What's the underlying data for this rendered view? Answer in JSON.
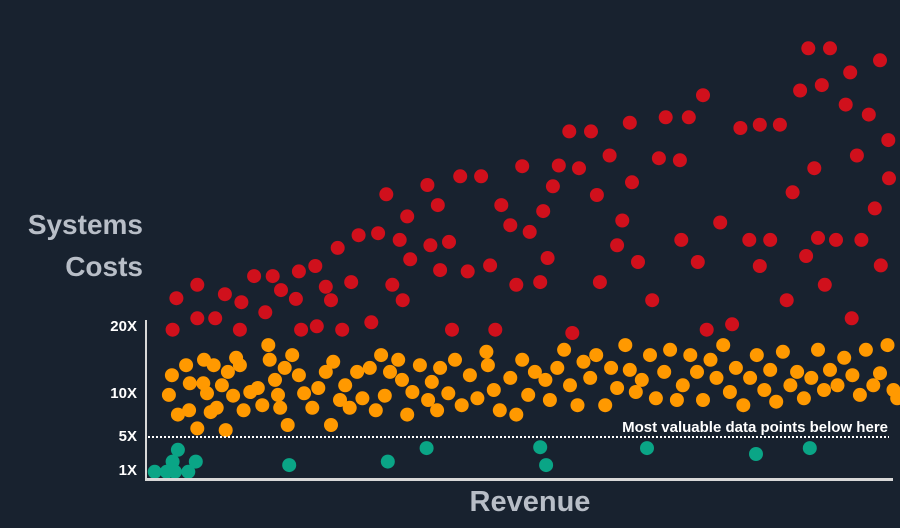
{
  "chart_data": {
    "type": "scatter",
    "title": "",
    "ylabel_lines": [
      "Systems",
      "Costs"
    ],
    "xlabel": "Revenue",
    "yticks": [
      {
        "value": 1,
        "label": "1X"
      },
      {
        "value": 5,
        "label": "5X"
      },
      {
        "value": 10,
        "label": "10X"
      },
      {
        "value": 20,
        "label": "20X"
      }
    ],
    "grid": false,
    "threshold": {
      "value": 5,
      "label": "Most valuable data points below here",
      "style": "dotted"
    },
    "colors": {
      "background": "#18222f",
      "high": "#d0101c",
      "mid": "#ff9900",
      "low": "#0aa586",
      "axis": "#d8d8d8",
      "label": "#b8bec7"
    },
    "series": [
      {
        "color": "#d0101c",
        "points": [
          [
            4.2,
            24.3
          ],
          [
            3.7,
            19.6
          ],
          [
            7.0,
            26.3
          ],
          [
            7.0,
            21.3
          ],
          [
            9.4,
            21.3
          ],
          [
            10.7,
            24.9
          ],
          [
            12.9,
            23.7
          ],
          [
            12.7,
            19.6
          ],
          [
            14.6,
            27.6
          ],
          [
            16.1,
            22.2
          ],
          [
            17.1,
            27.6
          ],
          [
            18.2,
            25.5
          ],
          [
            20.6,
            28.3
          ],
          [
            20.2,
            24.2
          ],
          [
            20.9,
            19.6
          ],
          [
            22.8,
            29.1
          ],
          [
            23.0,
            20.1
          ],
          [
            24.2,
            26.0
          ],
          [
            24.9,
            24.0
          ],
          [
            25.8,
            31.8
          ],
          [
            26.4,
            19.6
          ],
          [
            27.6,
            26.7
          ],
          [
            28.6,
            33.7
          ],
          [
            30.3,
            20.7
          ],
          [
            31.2,
            34.0
          ],
          [
            32.3,
            39.8
          ],
          [
            33.1,
            26.3
          ],
          [
            34.1,
            33.0
          ],
          [
            34.5,
            24.0
          ],
          [
            35.1,
            36.5
          ],
          [
            35.5,
            30.1
          ],
          [
            37.8,
            41.2
          ],
          [
            38.2,
            32.2
          ],
          [
            39.2,
            38.2
          ],
          [
            39.5,
            28.5
          ],
          [
            40.7,
            32.7
          ],
          [
            41.1,
            19.6
          ],
          [
            42.2,
            42.5
          ],
          [
            43.2,
            28.3
          ],
          [
            45.0,
            42.5
          ],
          [
            46.2,
            29.2
          ],
          [
            46.9,
            19.6
          ],
          [
            47.7,
            38.2
          ],
          [
            48.9,
            35.2
          ],
          [
            49.7,
            26.3
          ],
          [
            50.5,
            44.0
          ],
          [
            51.5,
            34.2
          ],
          [
            52.9,
            26.7
          ],
          [
            53.3,
            37.3
          ],
          [
            54.6,
            41.0
          ],
          [
            55.4,
            44.1
          ],
          [
            56.8,
            49.2
          ],
          [
            57.2,
            19.1
          ],
          [
            58.1,
            43.7
          ],
          [
            59.7,
            49.2
          ],
          [
            60.5,
            39.7
          ],
          [
            60.9,
            26.7
          ],
          [
            62.2,
            45.6
          ],
          [
            63.9,
            35.9
          ],
          [
            64.9,
            50.5
          ],
          [
            65.2,
            41.6
          ],
          [
            66.0,
            29.7
          ],
          [
            67.9,
            24.0
          ],
          [
            68.8,
            45.2
          ],
          [
            69.7,
            51.3
          ],
          [
            71.6,
            44.9
          ],
          [
            71.8,
            33.0
          ],
          [
            72.8,
            51.3
          ],
          [
            74.0,
            29.7
          ],
          [
            74.7,
            54.6
          ],
          [
            75.2,
            19.6
          ],
          [
            77.0,
            35.6
          ],
          [
            78.6,
            20.4
          ],
          [
            79.7,
            49.7
          ],
          [
            80.9,
            33.0
          ],
          [
            82.3,
            50.2
          ],
          [
            83.7,
            33.0
          ],
          [
            85.0,
            50.2
          ],
          [
            85.9,
            24.0
          ],
          [
            86.7,
            40.1
          ],
          [
            87.7,
            55.3
          ],
          [
            88.5,
            30.6
          ],
          [
            88.8,
            61.6
          ],
          [
            89.6,
            43.7
          ],
          [
            90.6,
            56.1
          ],
          [
            91.0,
            26.3
          ],
          [
            91.7,
            61.6
          ],
          [
            92.5,
            33.0
          ],
          [
            93.8,
            53.2
          ],
          [
            94.4,
            58.0
          ],
          [
            94.6,
            21.3
          ],
          [
            95.3,
            45.6
          ],
          [
            95.9,
            33.0
          ],
          [
            96.9,
            51.7
          ],
          [
            98.4,
            59.8
          ],
          [
            98.5,
            29.2
          ],
          [
            99.5,
            47.9
          ],
          [
            97.7,
            37.7
          ],
          [
            99.6,
            42.2
          ],
          [
            90.1,
            33.3
          ],
          [
            82.3,
            29.1
          ],
          [
            63.2,
            32.2
          ],
          [
            53.9,
            30.3
          ]
        ]
      },
      {
        "color": "#ff9900",
        "points": [
          [
            3.6,
            12.8
          ],
          [
            3.2,
            9.9
          ],
          [
            4.4,
            7.6
          ],
          [
            5.5,
            14.3
          ],
          [
            5.9,
            8.1
          ],
          [
            6.0,
            11.6
          ],
          [
            7.0,
            6.0
          ],
          [
            7.9,
            15.1
          ],
          [
            7.8,
            11.6
          ],
          [
            8.3,
            10.1
          ],
          [
            8.8,
            7.9
          ],
          [
            9.2,
            14.3
          ],
          [
            9.6,
            8.4
          ],
          [
            10.3,
            11.3
          ],
          [
            10.8,
            5.8
          ],
          [
            11.1,
            13.3
          ],
          [
            11.8,
            9.8
          ],
          [
            12.2,
            15.4
          ],
          [
            12.7,
            14.3
          ],
          [
            13.2,
            8.1
          ],
          [
            14.1,
            10.3
          ],
          [
            15.1,
            10.9
          ],
          [
            15.7,
            8.7
          ],
          [
            16.5,
            17.3
          ],
          [
            16.7,
            15.1
          ],
          [
            17.4,
            12.1
          ],
          [
            17.8,
            9.9
          ],
          [
            18.1,
            8.4
          ],
          [
            18.7,
            13.9
          ],
          [
            19.1,
            6.4
          ],
          [
            19.7,
            15.8
          ],
          [
            20.6,
            12.8
          ],
          [
            21.3,
            10.1
          ],
          [
            22.4,
            8.4
          ],
          [
            23.2,
            10.9
          ],
          [
            24.2,
            13.3
          ],
          [
            24.9,
            6.4
          ],
          [
            25.2,
            14.8
          ],
          [
            26.1,
            9.3
          ],
          [
            26.8,
            11.3
          ],
          [
            27.4,
            8.4
          ],
          [
            28.4,
            13.3
          ],
          [
            29.1,
            9.5
          ],
          [
            30.1,
            13.9
          ],
          [
            30.9,
            8.1
          ],
          [
            31.6,
            15.8
          ],
          [
            32.1,
            9.8
          ],
          [
            32.8,
            13.3
          ],
          [
            33.9,
            15.1
          ],
          [
            34.4,
            12.1
          ],
          [
            35.1,
            7.6
          ],
          [
            35.8,
            10.3
          ],
          [
            36.8,
            14.3
          ],
          [
            37.9,
            9.3
          ],
          [
            38.4,
            11.8
          ],
          [
            39.1,
            8.1
          ],
          [
            39.5,
            13.9
          ],
          [
            40.6,
            10.1
          ],
          [
            41.5,
            15.1
          ],
          [
            42.4,
            8.7
          ],
          [
            43.5,
            12.8
          ],
          [
            44.5,
            9.5
          ],
          [
            45.7,
            16.3
          ],
          [
            45.9,
            14.3
          ],
          [
            46.7,
            10.6
          ],
          [
            47.5,
            8.1
          ],
          [
            48.9,
            12.4
          ],
          [
            49.7,
            7.6
          ],
          [
            50.5,
            15.1
          ],
          [
            51.3,
            9.9
          ],
          [
            52.2,
            13.3
          ],
          [
            53.6,
            12.1
          ],
          [
            54.2,
            9.3
          ],
          [
            55.2,
            13.9
          ],
          [
            56.1,
            16.6
          ],
          [
            56.9,
            11.3
          ],
          [
            57.9,
            8.7
          ],
          [
            58.7,
            14.8
          ],
          [
            59.6,
            12.4
          ],
          [
            60.4,
            15.8
          ],
          [
            61.6,
            8.7
          ],
          [
            62.4,
            13.9
          ],
          [
            63.2,
            10.9
          ],
          [
            64.3,
            17.3
          ],
          [
            64.9,
            13.6
          ],
          [
            65.7,
            10.3
          ],
          [
            66.5,
            12.1
          ],
          [
            67.6,
            15.8
          ],
          [
            68.4,
            9.5
          ],
          [
            69.5,
            13.3
          ],
          [
            70.3,
            16.6
          ],
          [
            71.2,
            9.3
          ],
          [
            72.0,
            11.3
          ],
          [
            73.0,
            15.8
          ],
          [
            73.9,
            13.3
          ],
          [
            74.7,
            9.3
          ],
          [
            75.7,
            15.1
          ],
          [
            76.5,
            12.4
          ],
          [
            77.4,
            17.3
          ],
          [
            78.3,
            10.3
          ],
          [
            79.1,
            13.9
          ],
          [
            80.1,
            8.7
          ],
          [
            81.0,
            12.4
          ],
          [
            81.9,
            15.8
          ],
          [
            82.9,
            10.6
          ],
          [
            83.7,
            13.6
          ],
          [
            84.5,
            9.1
          ],
          [
            85.4,
            16.3
          ],
          [
            86.4,
            11.3
          ],
          [
            87.3,
            13.3
          ],
          [
            88.2,
            9.5
          ],
          [
            89.2,
            12.4
          ],
          [
            90.1,
            16.6
          ],
          [
            90.9,
            10.6
          ],
          [
            91.7,
            13.6
          ],
          [
            92.7,
            11.3
          ],
          [
            93.6,
            15.4
          ],
          [
            94.7,
            12.8
          ],
          [
            95.7,
            9.9
          ],
          [
            96.5,
            16.6
          ],
          [
            97.5,
            11.3
          ],
          [
            98.4,
            13.1
          ],
          [
            99.4,
            17.3
          ],
          [
            100.2,
            10.6
          ],
          [
            100.7,
            9.5
          ]
        ]
      },
      {
        "color": "#0aa586",
        "points": [
          [
            1.3,
            0.9
          ],
          [
            2.9,
            0.9
          ],
          [
            4.0,
            0.9
          ],
          [
            4.4,
            3.5
          ],
          [
            3.7,
            2.1
          ],
          [
            5.8,
            0.9
          ],
          [
            6.8,
            2.1
          ],
          [
            19.3,
            1.7
          ],
          [
            32.5,
            2.1
          ],
          [
            37.7,
            3.7
          ],
          [
            52.9,
            3.8
          ],
          [
            53.7,
            1.7
          ],
          [
            67.2,
            3.7
          ],
          [
            81.8,
            3.0
          ],
          [
            89.0,
            3.7
          ]
        ]
      }
    ]
  }
}
